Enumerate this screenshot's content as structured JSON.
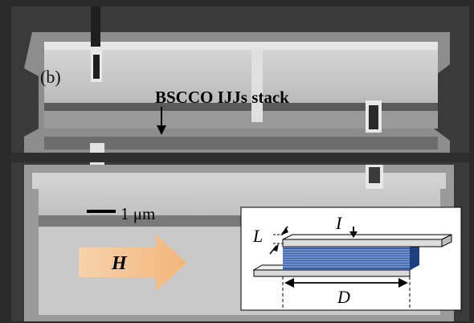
{
  "figure": {
    "panel_label": "(b)",
    "stack_label": "BSCCO IJJs stack",
    "scale_bar_label": "1 μm",
    "field_label": "H",
    "inset": {
      "current_label": "I",
      "length_label": "L",
      "width_label": "D"
    }
  },
  "colors": {
    "sem_background": "#2b2b2b",
    "sem_bridge": "#bdbdbd",
    "arrow_fill": "#f5c79a",
    "inset_stack": "#3a5fa8",
    "inset_electrode": "#d9d9d9"
  }
}
